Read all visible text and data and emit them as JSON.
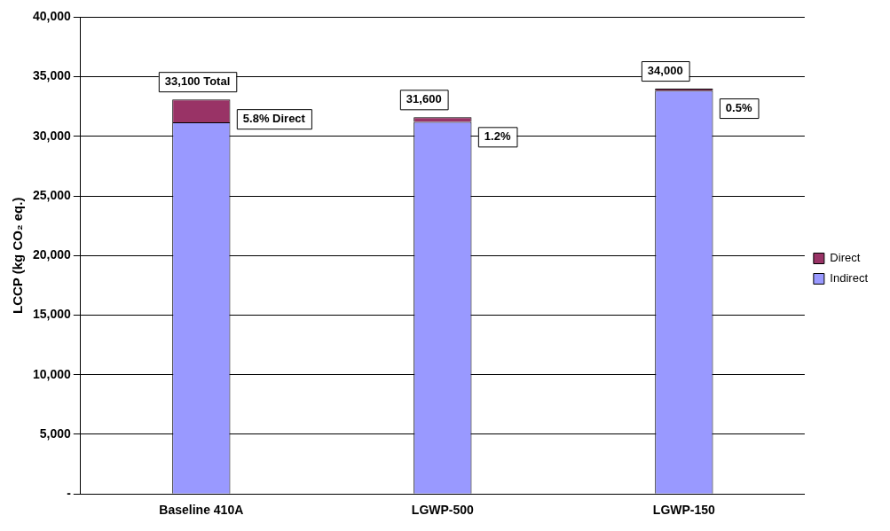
{
  "chart_data": {
    "type": "bar",
    "ylabel": "LCCP (kg CO₂ eq.)",
    "categories": [
      "Baseline 410A",
      "LGWP-500",
      "LGWP-150"
    ],
    "stacked": true,
    "series": [
      {
        "name": "Indirect",
        "color": "#9999ff",
        "values": [
          31180,
          31220,
          33830
        ]
      },
      {
        "name": "Direct",
        "color": "#993366",
        "values": [
          1920,
          380,
          170
        ]
      }
    ],
    "ylim": [
      0,
      40000
    ],
    "yticks": [
      {
        "value": 0,
        "label": "-"
      },
      {
        "value": 5000,
        "label": "5,000"
      },
      {
        "value": 10000,
        "label": "10,000"
      },
      {
        "value": 15000,
        "label": "15,000"
      },
      {
        "value": 20000,
        "label": "20,000"
      },
      {
        "value": 25000,
        "label": "25,000"
      },
      {
        "value": 30000,
        "label": "30,000"
      },
      {
        "value": 35000,
        "label": "35,000"
      },
      {
        "value": 40000,
        "label": "40,000"
      }
    ],
    "grid": "y",
    "legend": "right",
    "totals": [
      "33,100 Total",
      "31,600",
      "34,000"
    ],
    "annotations": [
      "5.8% Direct",
      "1.2%",
      "0.5%"
    ]
  }
}
